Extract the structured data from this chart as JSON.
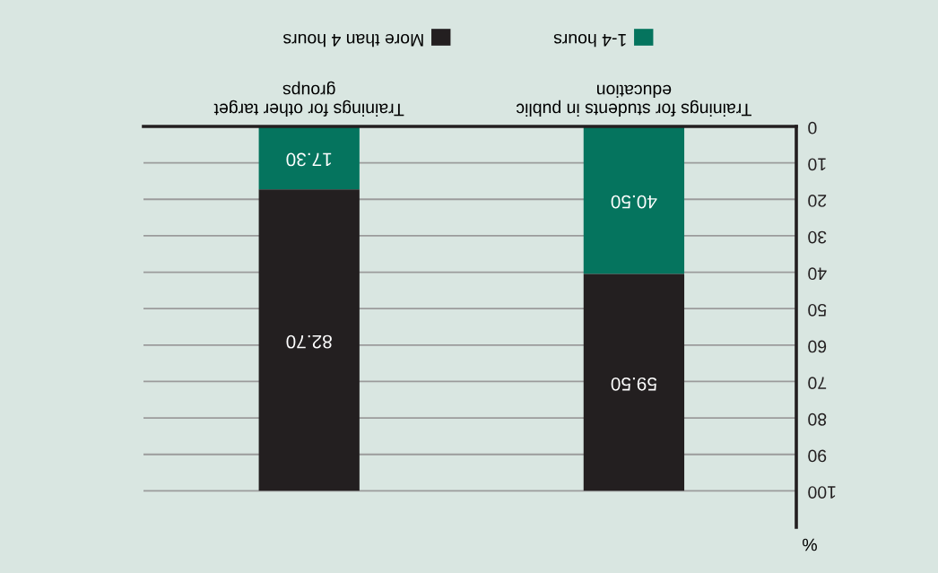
{
  "chart_data": {
    "type": "bar",
    "stacked": true,
    "categories": [
      "Trainings for other target\ngroups",
      "Trainings for students in public\neducation"
    ],
    "series": [
      {
        "name": "1-4 hours",
        "color": "#05745e",
        "values": [
          17.3,
          40.5
        ],
        "value_labels": [
          "17.30",
          "40.50"
        ]
      },
      {
        "name": "More than 4 hours",
        "color": "#231f20",
        "values": [
          82.7,
          59.5
        ],
        "value_labels": [
          "82.70",
          "59.50"
        ]
      }
    ],
    "ylabel": "%",
    "ylim": [
      110,
      0
    ],
    "yticks": [
      0,
      10,
      20,
      30,
      40,
      50,
      60,
      70,
      80,
      90,
      100
    ],
    "grid": "y",
    "legend": "top"
  }
}
